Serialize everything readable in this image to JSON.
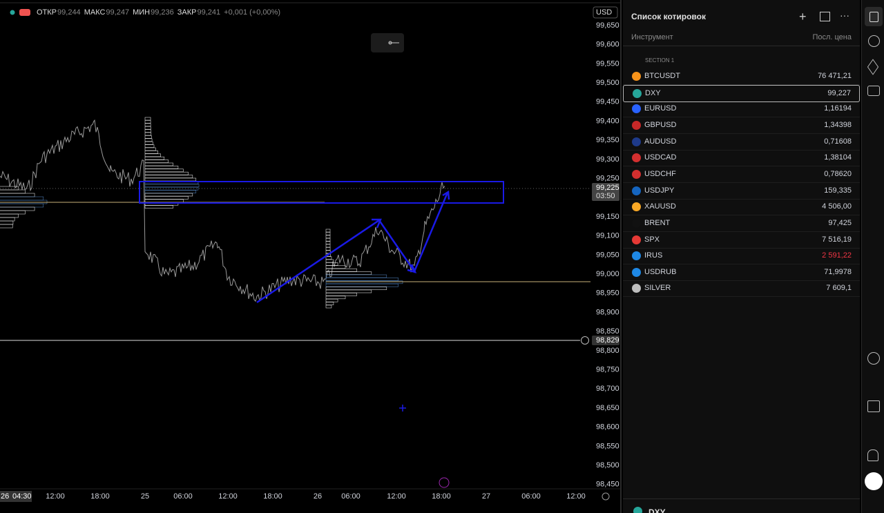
{
  "header": {
    "ohlc": [
      {
        "label": "ОТКР",
        "value": "99,244"
      },
      {
        "label": "МАКС",
        "value": "99,247"
      },
      {
        "label": "МИН",
        "value": "99,236"
      },
      {
        "label": "ЗАКР",
        "value": "99,241"
      }
    ],
    "change": "+0,001 (+0,00%)",
    "currency": "USD"
  },
  "price_axis": {
    "labels": [
      "99,650",
      "99,600",
      "99,550",
      "99,500",
      "99,450",
      "99,400",
      "99,350",
      "99,300",
      "99,250",
      "99,150",
      "99,100",
      "99,050",
      "99,000",
      "98,950",
      "98,900",
      "98,850",
      "98,800",
      "98,750",
      "98,700",
      "98,650",
      "98,600",
      "98,550",
      "98,500",
      "98,450"
    ],
    "current_price": "99,225",
    "countdown": "03:50",
    "line_price": "98,829"
  },
  "time_axis": {
    "cursor_day": "26",
    "cursor_time": "04:30",
    "labels": [
      "12:00",
      "18:00",
      "25",
      "06:00",
      "12:00",
      "18:00",
      "26",
      "06:00",
      "12:00",
      "18:00",
      "27",
      "06:00",
      "12:00"
    ]
  },
  "watchlist": {
    "title": "Список котировок",
    "col_instrument": "Инструмент",
    "col_price": "Посл. цена",
    "section": "SECTION 1",
    "rows": [
      {
        "symbol": "BTCUSDT",
        "price": "76 471,21",
        "icon_color": "#f7931a"
      },
      {
        "symbol": "DXY",
        "price": "99,227",
        "icon_color": "#26a69a"
      },
      {
        "symbol": "EURUSD",
        "price": "1,16194",
        "icon_color": "#2962ff"
      },
      {
        "symbol": "GBPUSD",
        "price": "1,34398",
        "icon_color": "#c62828"
      },
      {
        "symbol": "AUDUSD",
        "price": "0,71608",
        "icon_color": "#1e3a8a"
      },
      {
        "symbol": "USDCAD",
        "price": "1,38104",
        "icon_color": "#d32f2f"
      },
      {
        "symbol": "USDCHF",
        "price": "0,78620",
        "icon_color": "#d32f2f"
      },
      {
        "symbol": "USDJPY",
        "price": "159,335",
        "icon_color": "#1565c0"
      },
      {
        "symbol": "XAUUSD",
        "price": "4 506,00",
        "icon_color": "#f9a825"
      },
      {
        "symbol": "BRENT",
        "price": "97,425",
        "icon_color": "#111111"
      },
      {
        "symbol": "SPX",
        "price": "7 516,19",
        "icon_color": "#e53935"
      },
      {
        "symbol": "IRUS",
        "price": "2 591,22",
        "icon_color": "#1e88e5"
      },
      {
        "symbol": "USDRUB",
        "price": "71,9978",
        "icon_color": "#1e88e5"
      },
      {
        "symbol": "SILVER",
        "price": "7 609,1",
        "icon_color": "#bdbdbd"
      }
    ],
    "footer_symbol": "DXY"
  }
}
